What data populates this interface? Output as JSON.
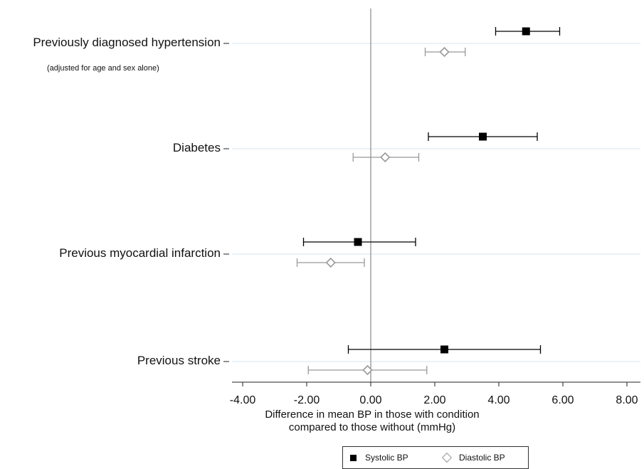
{
  "chart_data": {
    "type": "forest",
    "categories": [
      "Previously diagnosed hypertension",
      "Diabetes",
      "Previous myocardial infarction",
      "Previous stroke"
    ],
    "category_note": "(adjusted for age and sex alone)",
    "series": [
      {
        "name": "Systolic BP",
        "marker": "filled-square",
        "color": "#000000",
        "estimates": [
          4.85,
          3.5,
          -0.4,
          2.3
        ],
        "lower": [
          3.9,
          1.8,
          -2.1,
          -0.7
        ],
        "upper": [
          5.9,
          5.2,
          1.4,
          5.3
        ]
      },
      {
        "name": "Diastolic BP",
        "marker": "open-diamond",
        "color": "#999999",
        "estimates": [
          2.3,
          0.45,
          -1.25,
          -0.1
        ],
        "lower": [
          1.7,
          -0.55,
          -2.3,
          -1.95
        ],
        "upper": [
          2.95,
          1.5,
          -0.2,
          1.75
        ]
      }
    ],
    "xticks": [
      "-4.00",
      "-2.00",
      "0.00",
      "2.00",
      "4.00",
      "6.00",
      "8.00"
    ],
    "xlim": [
      -4,
      8
    ],
    "reference_line": 0,
    "xlabel_line1": "Difference in mean BP in those with condition",
    "xlabel_line2": "compared to those without (mmHg)",
    "legend_position": "bottom-center",
    "gridlines": "horizontal light blue"
  }
}
